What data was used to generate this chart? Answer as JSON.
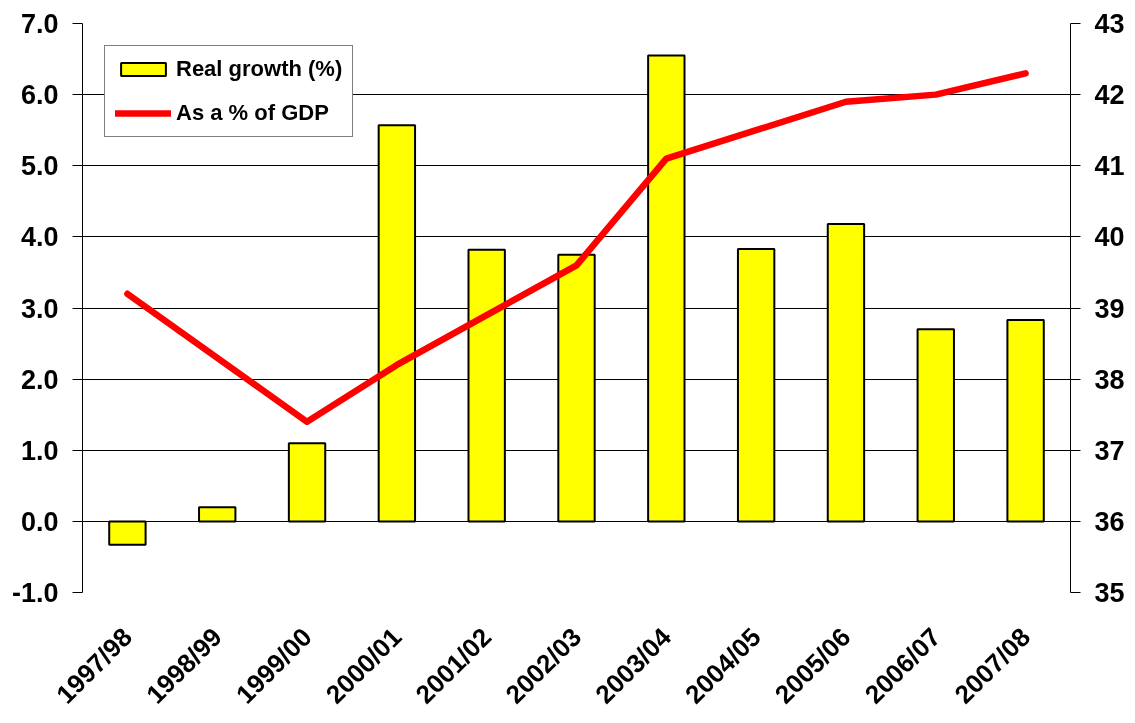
{
  "chart_data": {
    "type": "bar",
    "categories": [
      "1997/98",
      "1998/99",
      "1999/00",
      "2000/01",
      "2001/02",
      "2002/03",
      "2003/04",
      "2004/05",
      "2005/06",
      "2006/07",
      "2007/08"
    ],
    "series": [
      {
        "name": "Real growth (%)",
        "color": "#ffff00",
        "values": [
          -0.33,
          0.2,
          1.1,
          5.57,
          3.82,
          3.75,
          6.55,
          3.83,
          4.18,
          2.7,
          2.83
        ]
      },
      {
        "name": "As a % of GDP",
        "type": "line",
        "axis": "y2",
        "color": "#ff0000",
        "values": [
          39.2,
          38.3,
          37.4,
          38.2,
          38.9,
          39.6,
          41.1,
          41.5,
          41.9,
          42.0,
          42.3
        ]
      }
    ],
    "ylim": [
      -1,
      7
    ],
    "yticks": [
      {
        "value": -1,
        "label": "-1.0"
      },
      {
        "value": 0,
        "label": "0.0"
      },
      {
        "value": 1,
        "label": "1.0"
      },
      {
        "value": 2,
        "label": "2.0"
      },
      {
        "value": 3,
        "label": "3.0"
      },
      {
        "value": 4,
        "label": "4.0"
      },
      {
        "value": 5,
        "label": "5.0"
      },
      {
        "value": 6,
        "label": "6.0"
      },
      {
        "value": 7,
        "label": "7.0"
      }
    ],
    "y2lim": [
      35,
      43
    ],
    "y2ticks": [
      35,
      36,
      37,
      38,
      39,
      40,
      41,
      42,
      43
    ],
    "grid": "y",
    "legend": "top left"
  }
}
